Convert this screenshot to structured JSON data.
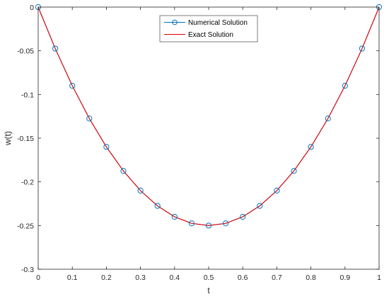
{
  "chart_data": {
    "type": "line",
    "xlabel": "t",
    "ylabel": "w(t)",
    "xlim": [
      0,
      1
    ],
    "ylim": [
      -0.3,
      0
    ],
    "xticks": [
      "0",
      "0.1",
      "0.2",
      "0.3",
      "0.4",
      "0.5",
      "0.6",
      "0.7",
      "0.8",
      "0.9",
      "1"
    ],
    "yticks": [
      "0",
      "-0.05",
      "-0.1",
      "-0.15",
      "-0.2",
      "-0.25",
      "-0.3"
    ],
    "grid": false,
    "legend_position": "top-center",
    "series": [
      {
        "name": "Numerical Solution",
        "style": "line-with-circle-markers",
        "color": "#0072BD",
        "x": [
          0,
          0.05,
          0.1,
          0.15,
          0.2,
          0.25,
          0.3,
          0.35,
          0.4,
          0.45,
          0.5,
          0.55,
          0.6,
          0.65,
          0.7,
          0.75,
          0.8,
          0.85,
          0.9,
          0.95,
          1
        ],
        "y": [
          0,
          -0.0475,
          -0.09,
          -0.1275,
          -0.16,
          -0.1875,
          -0.21,
          -0.2275,
          -0.24,
          -0.2475,
          -0.25,
          -0.2475,
          -0.24,
          -0.2275,
          -0.21,
          -0.1875,
          -0.16,
          -0.1275,
          -0.09,
          -0.0475,
          0
        ]
      },
      {
        "name": "Exact Solution",
        "style": "line",
        "color": "#E00000",
        "x": [
          0,
          0.05,
          0.1,
          0.15,
          0.2,
          0.25,
          0.3,
          0.35,
          0.4,
          0.45,
          0.5,
          0.55,
          0.6,
          0.65,
          0.7,
          0.75,
          0.8,
          0.85,
          0.9,
          0.95,
          1
        ],
        "y": [
          0,
          -0.0475,
          -0.09,
          -0.1275,
          -0.16,
          -0.1875,
          -0.21,
          -0.2275,
          -0.24,
          -0.2475,
          -0.25,
          -0.2475,
          -0.24,
          -0.2275,
          -0.21,
          -0.1875,
          -0.16,
          -0.1275,
          -0.09,
          -0.0475,
          0
        ]
      }
    ]
  }
}
